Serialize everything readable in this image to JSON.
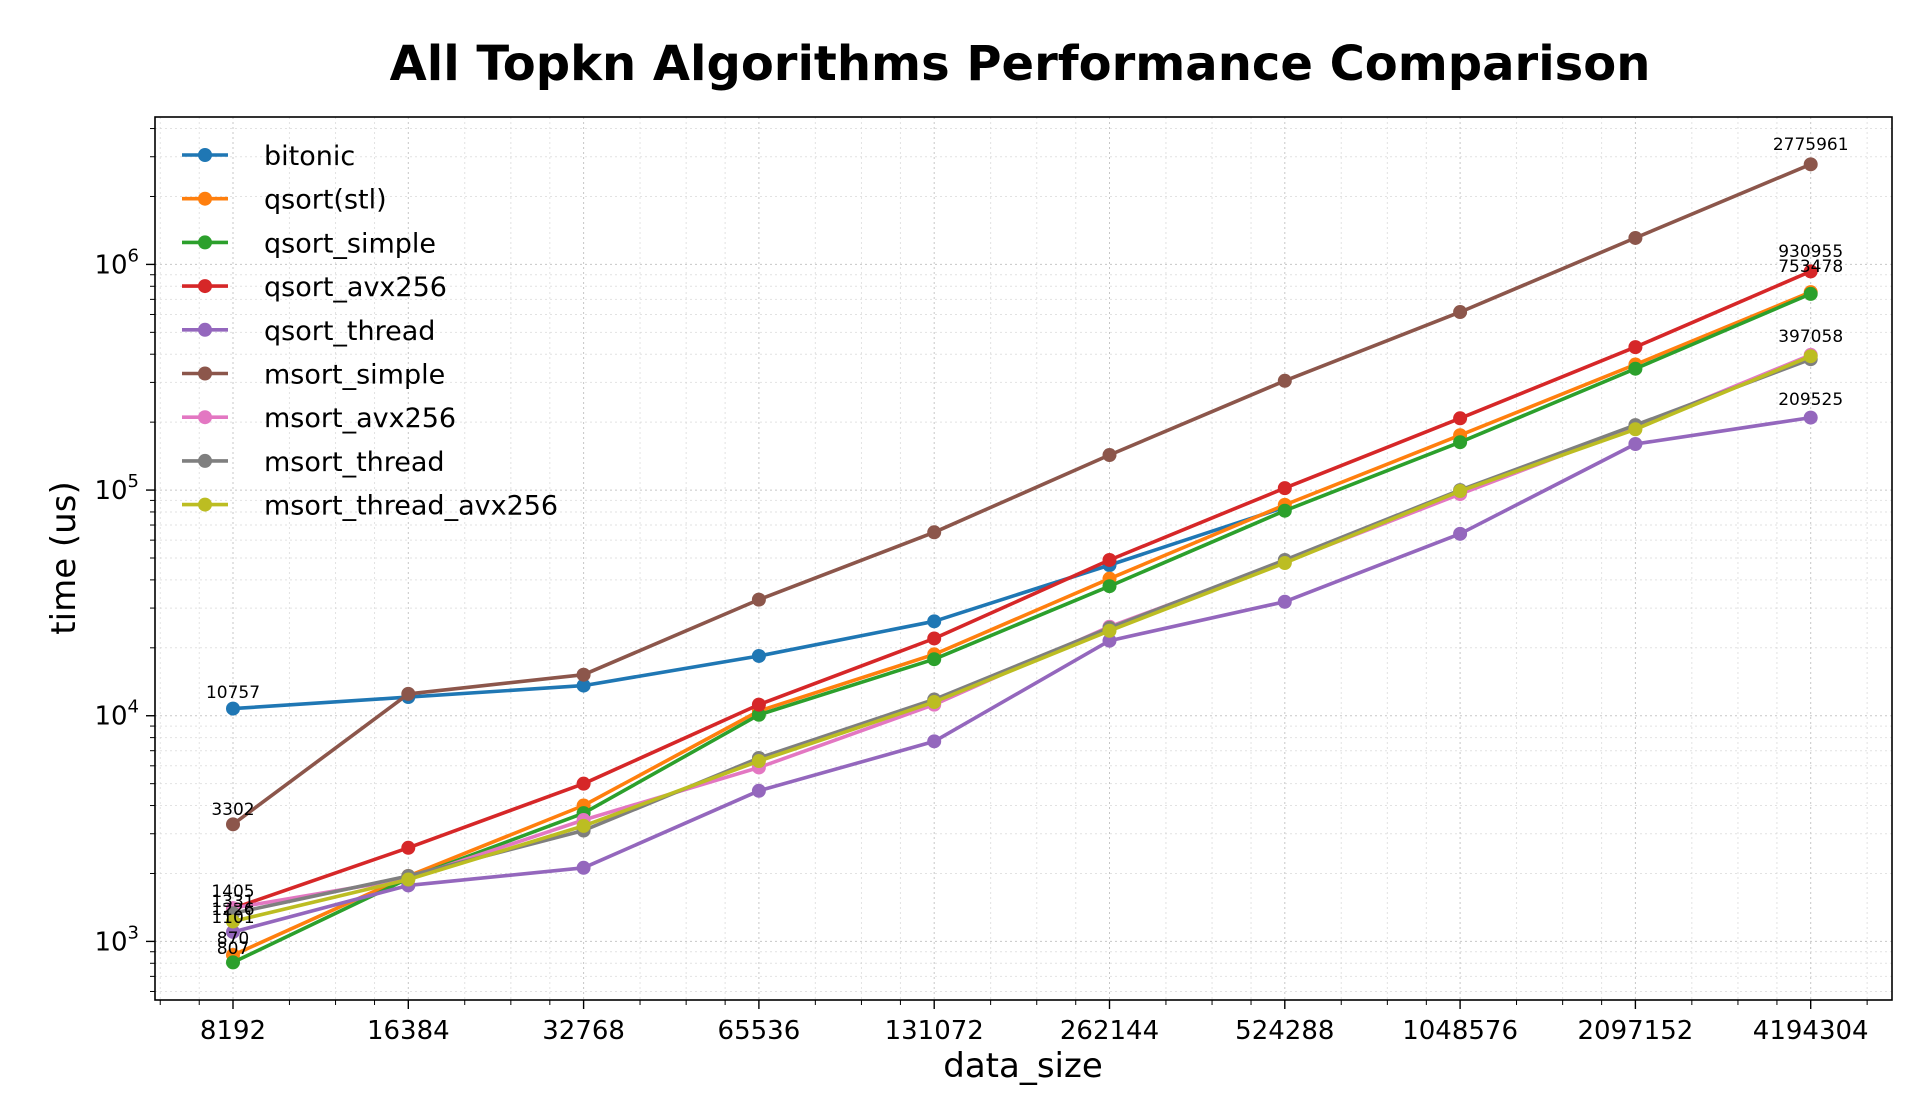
{
  "chart_data": {
    "type": "line",
    "title": "All Topkn Algorithms Performance Comparison",
    "xlabel": "data_size",
    "ylabel": "time (us)",
    "x_scale": "log2",
    "y_scale": "log10",
    "ylim": [
      550,
      4500000
    ],
    "grid": true,
    "legend_position": "top-left",
    "categories": [
      8192,
      16384,
      32768,
      65536,
      131072,
      262144,
      524288,
      1048576,
      2097152,
      4194304
    ],
    "series": [
      {
        "name": "bitonic",
        "color": "#1f77b4",
        "values": [
          10757,
          12100,
          13600,
          18400,
          26200,
          46500,
          84000,
          null,
          null,
          null
        ]
      },
      {
        "name": "qsort(stl)",
        "color": "#ff7f0e",
        "values": [
          870,
          1950,
          4000,
          10500,
          18700,
          40500,
          86000,
          175000,
          360000,
          753478
        ]
      },
      {
        "name": "qsort_simple",
        "color": "#2ca02c",
        "values": [
          807,
          1900,
          3700,
          10100,
          17800,
          37500,
          81000,
          163000,
          345000,
          740000
        ]
      },
      {
        "name": "qsort_avx256",
        "color": "#d62728",
        "values": [
          1400,
          2600,
          5000,
          11200,
          22000,
          49000,
          102000,
          208000,
          430000,
          930955
        ]
      },
      {
        "name": "qsort_thread",
        "color": "#9467bd",
        "values": [
          1101,
          1770,
          2120,
          4650,
          7700,
          21500,
          32000,
          64000,
          160000,
          209525
        ]
      },
      {
        "name": "msort_simple",
        "color": "#8c564b",
        "values": [
          3302,
          12500,
          15200,
          32700,
          65000,
          143000,
          305000,
          615000,
          1310000,
          2775961
        ]
      },
      {
        "name": "msort_avx256",
        "color": "#e377c2",
        "values": [
          1405,
          1900,
          3450,
          5900,
          11200,
          24800,
          48000,
          96000,
          190000,
          397058
        ]
      },
      {
        "name": "msort_thread",
        "color": "#7f7f7f",
        "values": [
          1331,
          1950,
          3100,
          6500,
          11800,
          24500,
          49000,
          100000,
          194000,
          380000
        ]
      },
      {
        "name": "msort_thread_avx256",
        "color": "#bcbd22",
        "values": [
          1226,
          1880,
          3250,
          6300,
          11500,
          23800,
          47500,
          99000,
          186000,
          392000
        ]
      }
    ],
    "annotations": {
      "first": [
        "10757",
        "870",
        "807",
        "1101",
        "3302",
        "1405",
        "1331",
        "1226"
      ],
      "last": [
        "753478",
        "930955",
        "209525",
        "2775961",
        "397058"
      ]
    },
    "y_tick_labels": [
      "10",
      "10",
      "10",
      "10"
    ],
    "y_tick_exponents": [
      "3",
      "4",
      "5",
      "6"
    ]
  }
}
